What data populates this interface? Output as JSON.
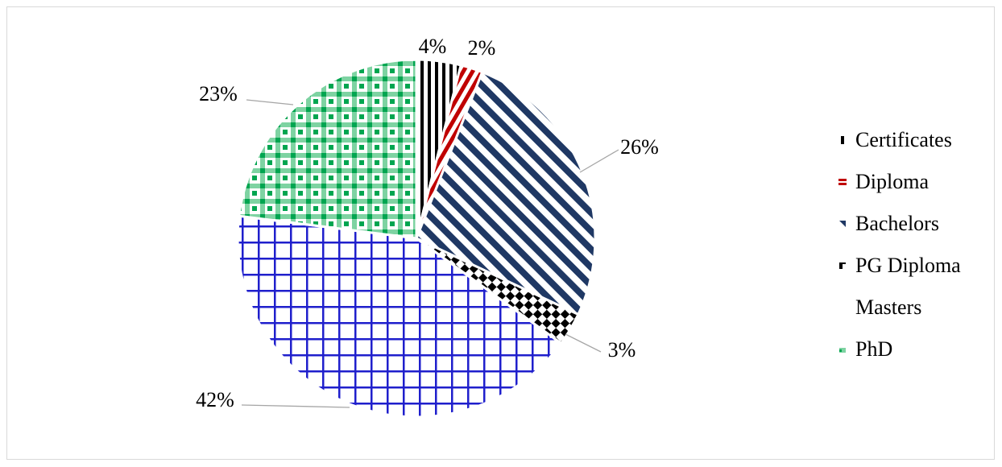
{
  "chart_data": {
    "type": "pie",
    "title": "",
    "start_angle_deg": 0,
    "direction": "clockwise",
    "slices": [
      {
        "name": "Certificates",
        "value": 4,
        "label": "4%",
        "color": "#000000",
        "pattern": "vertical-stripes"
      },
      {
        "name": "Diploma",
        "value": 2,
        "label": "2%",
        "color": "#c00000",
        "pattern": "diagonal-stripes"
      },
      {
        "name": "Bachelors",
        "value": 26,
        "label": "26%",
        "color": "#1f3864",
        "pattern": "wide-diagonal-stripes"
      },
      {
        "name": "PG Diploma",
        "value": 3,
        "label": "3%",
        "color": "#000000",
        "pattern": "checkerboard"
      },
      {
        "name": "Masters",
        "value": 42,
        "label": "42%",
        "color": "#1f1fcc",
        "pattern": "grid"
      },
      {
        "name": "PhD",
        "value": 23,
        "label": "23%",
        "color": "#00a550",
        "pattern": "plaid"
      }
    ],
    "legend_position": "right"
  },
  "legend": {
    "items": [
      {
        "label": "Certificates",
        "color": "#000000",
        "show_swatch": true
      },
      {
        "label": "Diploma",
        "color": "#c00000",
        "show_swatch": true
      },
      {
        "label": "Bachelors",
        "color": "#1f3864",
        "show_swatch": true
      },
      {
        "label": "PG Diploma",
        "color": "#000000",
        "show_swatch": true
      },
      {
        "label": "Masters",
        "color": "#1f1fcc",
        "show_swatch": false
      },
      {
        "label": "PhD",
        "color": "#00a550",
        "show_swatch": true
      }
    ]
  }
}
